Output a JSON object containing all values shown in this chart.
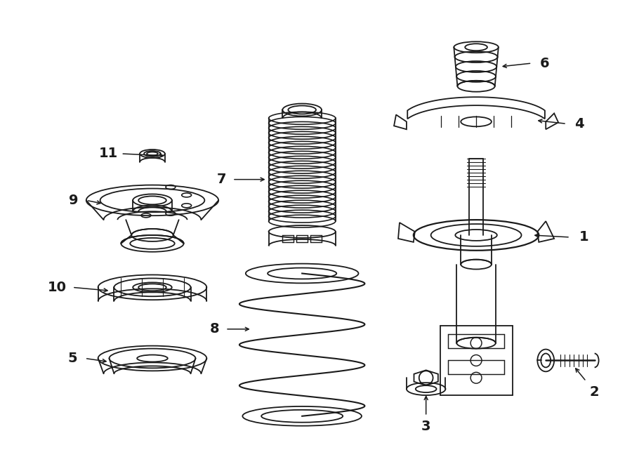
{
  "background_color": "#ffffff",
  "line_color": "#1a1a1a",
  "line_width": 1.3,
  "fig_width": 9.0,
  "fig_height": 6.61
}
